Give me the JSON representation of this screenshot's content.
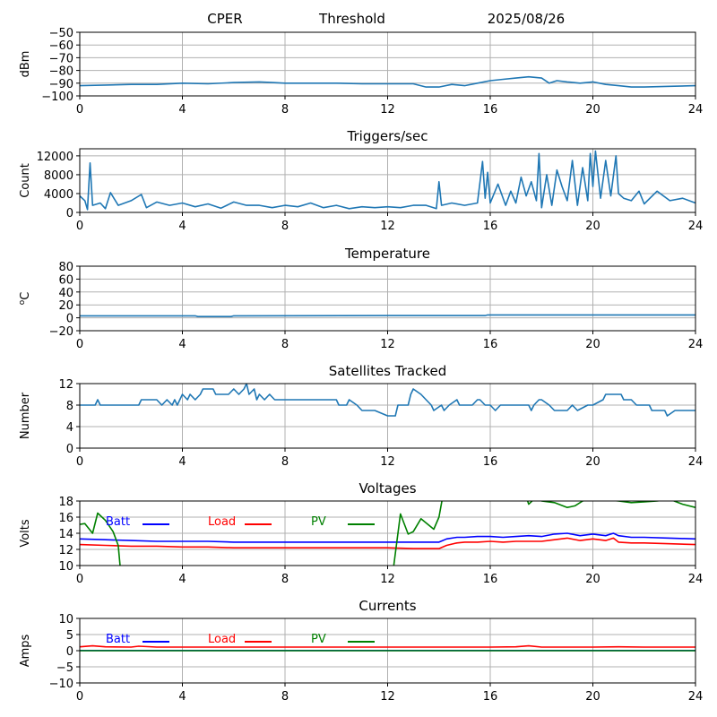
{
  "header": {
    "left": "CPER",
    "center": "Threshold",
    "right": "2025/08/26"
  },
  "colors": {
    "series": "#1f77b4",
    "grid": "#b0b0b0",
    "batt": "#0000ff",
    "load": "#ff0000",
    "pv": "#008000"
  },
  "chart_data": [
    {
      "id": "threshold",
      "type": "line",
      "title": "",
      "ylabel": "dBm",
      "xlim": [
        0,
        24
      ],
      "xticks": [
        0,
        4,
        8,
        12,
        16,
        20,
        24
      ],
      "ylim": [
        -100,
        -50
      ],
      "yticks": [
        -100,
        -90,
        -80,
        -70,
        -60,
        -50
      ],
      "grid": true,
      "series": [
        {
          "x": [
            0,
            1,
            2,
            3,
            4,
            5,
            6,
            7,
            7.5,
            8,
            9,
            10,
            11,
            12,
            13,
            13.5,
            14,
            14.5,
            15,
            15.5,
            16,
            16.5,
            17,
            17.5,
            18,
            18.3,
            18.6,
            19,
            19.5,
            20,
            20.5,
            21,
            21.5,
            22,
            23,
            24
          ],
          "y": [
            -92,
            -91.5,
            -91,
            -91,
            -90,
            -90.5,
            -89.5,
            -89,
            -89.5,
            -90,
            -90,
            -90,
            -90.5,
            -90.5,
            -90.5,
            -93,
            -93,
            -91,
            -92,
            -90,
            -88,
            -87,
            -86,
            -85,
            -86,
            -90,
            -88,
            -89,
            -90,
            -89,
            -91,
            -92,
            -93,
            -93,
            -92.5,
            -92
          ]
        }
      ]
    },
    {
      "id": "triggers",
      "type": "line",
      "title": "Triggers/sec",
      "ylabel": "Count",
      "xlim": [
        0,
        24
      ],
      "xticks": [
        0,
        4,
        8,
        12,
        16,
        20,
        24
      ],
      "ylim": [
        0,
        13500
      ],
      "yticks": [
        0,
        4000,
        8000,
        12000
      ],
      "grid": true,
      "series": [
        {
          "x": [
            0,
            0.2,
            0.3,
            0.4,
            0.5,
            0.8,
            1.0,
            1.2,
            1.5,
            2.0,
            2.4,
            2.6,
            3.0,
            3.5,
            4.0,
            4.5,
            5.0,
            5.5,
            6.0,
            6.5,
            7.0,
            7.5,
            8.0,
            8.5,
            9.0,
            9.5,
            10.0,
            10.5,
            11.0,
            11.5,
            12.0,
            12.5,
            13.0,
            13.5,
            13.9,
            14.0,
            14.1,
            14.5,
            15.0,
            15.5,
            15.7,
            15.8,
            15.9,
            16.0,
            16.3,
            16.6,
            16.8,
            17.0,
            17.2,
            17.4,
            17.6,
            17.8,
            17.9,
            18.0,
            18.2,
            18.4,
            18.6,
            18.8,
            19.0,
            19.2,
            19.4,
            19.6,
            19.8,
            19.9,
            20.0,
            20.1,
            20.3,
            20.5,
            20.7,
            20.9,
            21.0,
            21.2,
            21.5,
            21.8,
            22.0,
            22.5,
            23.0,
            23.5,
            24.0
          ],
          "y": [
            3500,
            2500,
            600,
            10500,
            1500,
            2000,
            800,
            4200,
            1500,
            2500,
            3800,
            1000,
            2200,
            1500,
            2000,
            1200,
            1800,
            900,
            2200,
            1500,
            1500,
            1000,
            1500,
            1200,
            2000,
            1000,
            1500,
            800,
            1200,
            1000,
            1200,
            1000,
            1500,
            1500,
            800,
            6500,
            1500,
            2000,
            1500,
            2000,
            10800,
            3000,
            8500,
            2000,
            6000,
            1500,
            4500,
            2000,
            7500,
            3500,
            6500,
            2500,
            12500,
            1000,
            8000,
            1500,
            9000,
            5500,
            2500,
            11000,
            1500,
            9500,
            2500,
            12500,
            5500,
            13000,
            3000,
            11000,
            3500,
            12000,
            4000,
            3000,
            2500,
            4500,
            1800,
            4500,
            2500,
            3000,
            2000
          ]
        }
      ]
    },
    {
      "id": "temperature",
      "type": "line",
      "title": "Temperature",
      "ylabel": "oC",
      "xlim": [
        0,
        24
      ],
      "xticks": [
        0,
        4,
        8,
        12,
        16,
        20,
        24
      ],
      "ylim": [
        -20,
        80
      ],
      "yticks": [
        -20,
        0,
        20,
        40,
        60,
        80
      ],
      "grid": true,
      "series": [
        {
          "x": [
            0,
            4.5,
            4.6,
            5.9,
            6.0,
            12,
            15.8,
            15.9,
            20,
            24
          ],
          "y": [
            3,
            3,
            2,
            2,
            3,
            3.5,
            3.5,
            4.5,
            4.5,
            4.5
          ]
        }
      ]
    },
    {
      "id": "satellites",
      "type": "line",
      "title": "Satellites Tracked",
      "ylabel": "Number",
      "xlim": [
        0,
        24
      ],
      "xticks": [
        0,
        4,
        8,
        12,
        16,
        20,
        24
      ],
      "ylim": [
        0,
        12
      ],
      "yticks": [
        0,
        4,
        8,
        12
      ],
      "grid": true,
      "series": [
        {
          "x": [
            0,
            0.6,
            0.7,
            0.8,
            2.3,
            2.4,
            3.0,
            3.2,
            3.4,
            3.6,
            3.7,
            3.8,
            4.0,
            4.2,
            4.3,
            4.5,
            4.7,
            4.8,
            4.9,
            5.2,
            5.3,
            5.8,
            6.0,
            6.2,
            6.4,
            6.5,
            6.6,
            6.8,
            6.9,
            7.0,
            7.2,
            7.4,
            7.6,
            8.0,
            9.0,
            10.0,
            10.1,
            10.4,
            10.5,
            10.8,
            11.0,
            11.5,
            12.0,
            12.3,
            12.4,
            12.8,
            12.9,
            13.0,
            13.3,
            13.5,
            13.7,
            13.8,
            14.1,
            14.2,
            14.4,
            14.7,
            14.8,
            15.3,
            15.5,
            15.6,
            15.8,
            16.0,
            16.2,
            16.4,
            16.6,
            17.5,
            17.6,
            17.7,
            17.9,
            18.0,
            18.3,
            18.5,
            18.7,
            19.0,
            19.2,
            19.4,
            19.8,
            20.0,
            20.4,
            20.5,
            21.1,
            21.2,
            21.5,
            21.7,
            22.2,
            22.3,
            22.8,
            22.9,
            23.2,
            23.5,
            23.7,
            24.0
          ],
          "y": [
            8,
            8,
            9,
            8,
            8,
            9,
            9,
            8,
            9,
            8,
            9,
            8,
            10,
            9,
            10,
            9,
            10,
            11,
            11,
            11,
            10,
            10,
            11,
            10,
            11,
            12,
            10,
            11,
            9,
            10,
            9,
            10,
            9,
            9,
            9,
            9,
            8,
            8,
            9,
            8,
            7,
            7,
            6,
            6,
            8,
            8,
            10,
            11,
            10,
            9,
            8,
            7,
            8,
            7,
            8,
            9,
            8,
            8,
            9,
            9,
            8,
            8,
            7,
            8,
            8,
            8,
            7,
            8,
            9,
            9,
            8,
            7,
            7,
            7,
            8,
            7,
            8,
            8,
            9,
            10,
            10,
            9,
            9,
            8,
            8,
            7,
            7,
            6,
            7,
            7,
            7,
            7
          ]
        }
      ]
    },
    {
      "id": "voltages",
      "type": "line",
      "title": "Voltages",
      "ylabel": "Volts",
      "xlim": [
        0,
        24
      ],
      "xticks": [
        0,
        4,
        8,
        12,
        16,
        20,
        24
      ],
      "ylim": [
        10,
        18
      ],
      "yticks": [
        10,
        12,
        14,
        16,
        18
      ],
      "grid": true,
      "legend": [
        "Batt",
        "Load",
        "PV"
      ],
      "legend_placement": "top-left",
      "series": [
        {
          "name": "Batt",
          "color": "#0000ff",
          "x": [
            0,
            1,
            2,
            3,
            4,
            5,
            6,
            7,
            8,
            9,
            10,
            11,
            12,
            13,
            14,
            14.3,
            14.7,
            15,
            15.5,
            16,
            16.5,
            17,
            17.5,
            18,
            18.5,
            19,
            19.5,
            20,
            20.5,
            20.8,
            21,
            21.5,
            22,
            23,
            24
          ],
          "y": [
            13.3,
            13.2,
            13.1,
            13.0,
            13.0,
            13.0,
            12.9,
            12.9,
            12.9,
            12.9,
            12.9,
            12.9,
            12.9,
            12.9,
            12.9,
            13.3,
            13.5,
            13.5,
            13.6,
            13.6,
            13.5,
            13.6,
            13.7,
            13.6,
            13.9,
            14.0,
            13.7,
            13.9,
            13.7,
            14.0,
            13.7,
            13.5,
            13.5,
            13.4,
            13.3
          ]
        },
        {
          "name": "Load",
          "color": "#ff0000",
          "x": [
            0,
            1,
            2,
            3,
            4,
            5,
            6,
            7,
            8,
            9,
            10,
            11,
            12,
            13,
            14,
            14.3,
            14.7,
            15,
            15.5,
            16,
            16.5,
            17,
            17.5,
            18,
            18.5,
            19,
            19.5,
            20,
            20.5,
            20.8,
            21,
            21.5,
            22,
            23,
            24
          ],
          "y": [
            12.6,
            12.5,
            12.4,
            12.4,
            12.3,
            12.3,
            12.2,
            12.2,
            12.2,
            12.2,
            12.2,
            12.2,
            12.2,
            12.1,
            12.1,
            12.5,
            12.8,
            12.9,
            12.9,
            13.0,
            12.9,
            13.0,
            13.0,
            13.0,
            13.2,
            13.4,
            13.1,
            13.3,
            13.1,
            13.4,
            12.9,
            12.8,
            12.8,
            12.7,
            12.6
          ]
        },
        {
          "name": "PV",
          "color": "#008000",
          "x": [
            0,
            0.2,
            0.5,
            0.7,
            1.0,
            1.3,
            1.5,
            1.6,
            12.2,
            12.5,
            12.8,
            13.0,
            13.3,
            13.8,
            14.0,
            14.2,
            17.3,
            17.5,
            17.8,
            18.0,
            18.5,
            19.0,
            19.3,
            19.6,
            20.0,
            21.0,
            21.5,
            22.0,
            22.5,
            23.0,
            23.5,
            24.0
          ],
          "y": [
            15.1,
            15.2,
            14.0,
            16.5,
            15.6,
            14.2,
            12.5,
            9.0,
            9.0,
            16.4,
            13.9,
            14.2,
            15.8,
            14.5,
            16.0,
            19.5,
            19.5,
            17.6,
            18.5,
            18.0,
            17.8,
            17.2,
            17.4,
            18.0,
            18.3,
            18.0,
            17.8,
            17.9,
            18.0,
            18.2,
            17.6,
            17.2
          ]
        }
      ]
    },
    {
      "id": "currents",
      "type": "line",
      "title": "Currents",
      "ylabel": "Amps",
      "xlim": [
        0,
        24
      ],
      "xticks": [
        0,
        4,
        8,
        12,
        16,
        20,
        24
      ],
      "ylim": [
        -10,
        10
      ],
      "yticks": [
        -10,
        -5,
        0,
        5,
        10
      ],
      "grid": true,
      "legend": [
        "Batt",
        "Load",
        "PV"
      ],
      "legend_placement": "top-left",
      "series": [
        {
          "name": "Batt",
          "color": "#0000ff",
          "x": [
            0,
            24
          ],
          "y": [
            0.05,
            0.05
          ]
        },
        {
          "name": "Load",
          "color": "#ff0000",
          "x": [
            0,
            0.5,
            1,
            2,
            2.3,
            3,
            4,
            6,
            8,
            10,
            12,
            14,
            16,
            17,
            17.5,
            18,
            19,
            20,
            21,
            22,
            24
          ],
          "y": [
            1.2,
            1.5,
            1.2,
            1.1,
            1.4,
            1.1,
            1.1,
            1.1,
            1.1,
            1.1,
            1.1,
            1.1,
            1.1,
            1.2,
            1.5,
            1.1,
            1.1,
            1.1,
            1.2,
            1.1,
            1.1
          ]
        },
        {
          "name": "PV",
          "color": "#008000",
          "x": [
            0,
            24
          ],
          "y": [
            0,
            0
          ]
        }
      ]
    }
  ]
}
